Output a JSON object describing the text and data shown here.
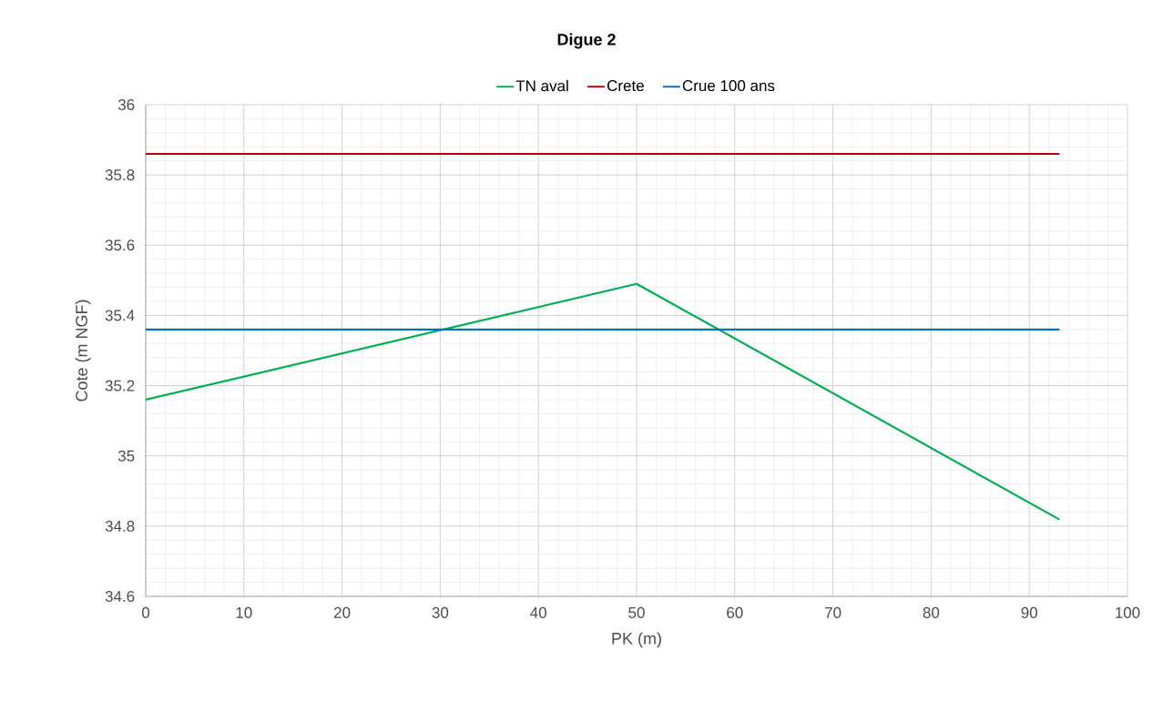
{
  "chart_data": {
    "type": "line",
    "title": "Digue 2",
    "xlabel": "PK (m)",
    "ylabel": "Cote (m NGF)",
    "series": [
      {
        "name": "TN aval",
        "color": "#00b050",
        "x": [
          0,
          50,
          93
        ],
        "values": [
          35.16,
          35.49,
          34.82
        ]
      },
      {
        "name": "Crete",
        "color": "#c00000",
        "x": [
          0,
          93
        ],
        "values": [
          35.86,
          35.86
        ]
      },
      {
        "name": "Crue 100 ans",
        "color": "#0070c0",
        "x": [
          0,
          93
        ],
        "values": [
          35.36,
          35.36
        ]
      }
    ],
    "xlim": [
      0,
      100
    ],
    "xticks": [
      0,
      10,
      20,
      30,
      40,
      50,
      60,
      70,
      80,
      90,
      100
    ],
    "ylim": [
      34.6,
      36
    ],
    "yticks": [
      34.6,
      34.8,
      35,
      35.2,
      35.4,
      35.6,
      35.8,
      36
    ],
    "grid": true,
    "legend": "top"
  }
}
